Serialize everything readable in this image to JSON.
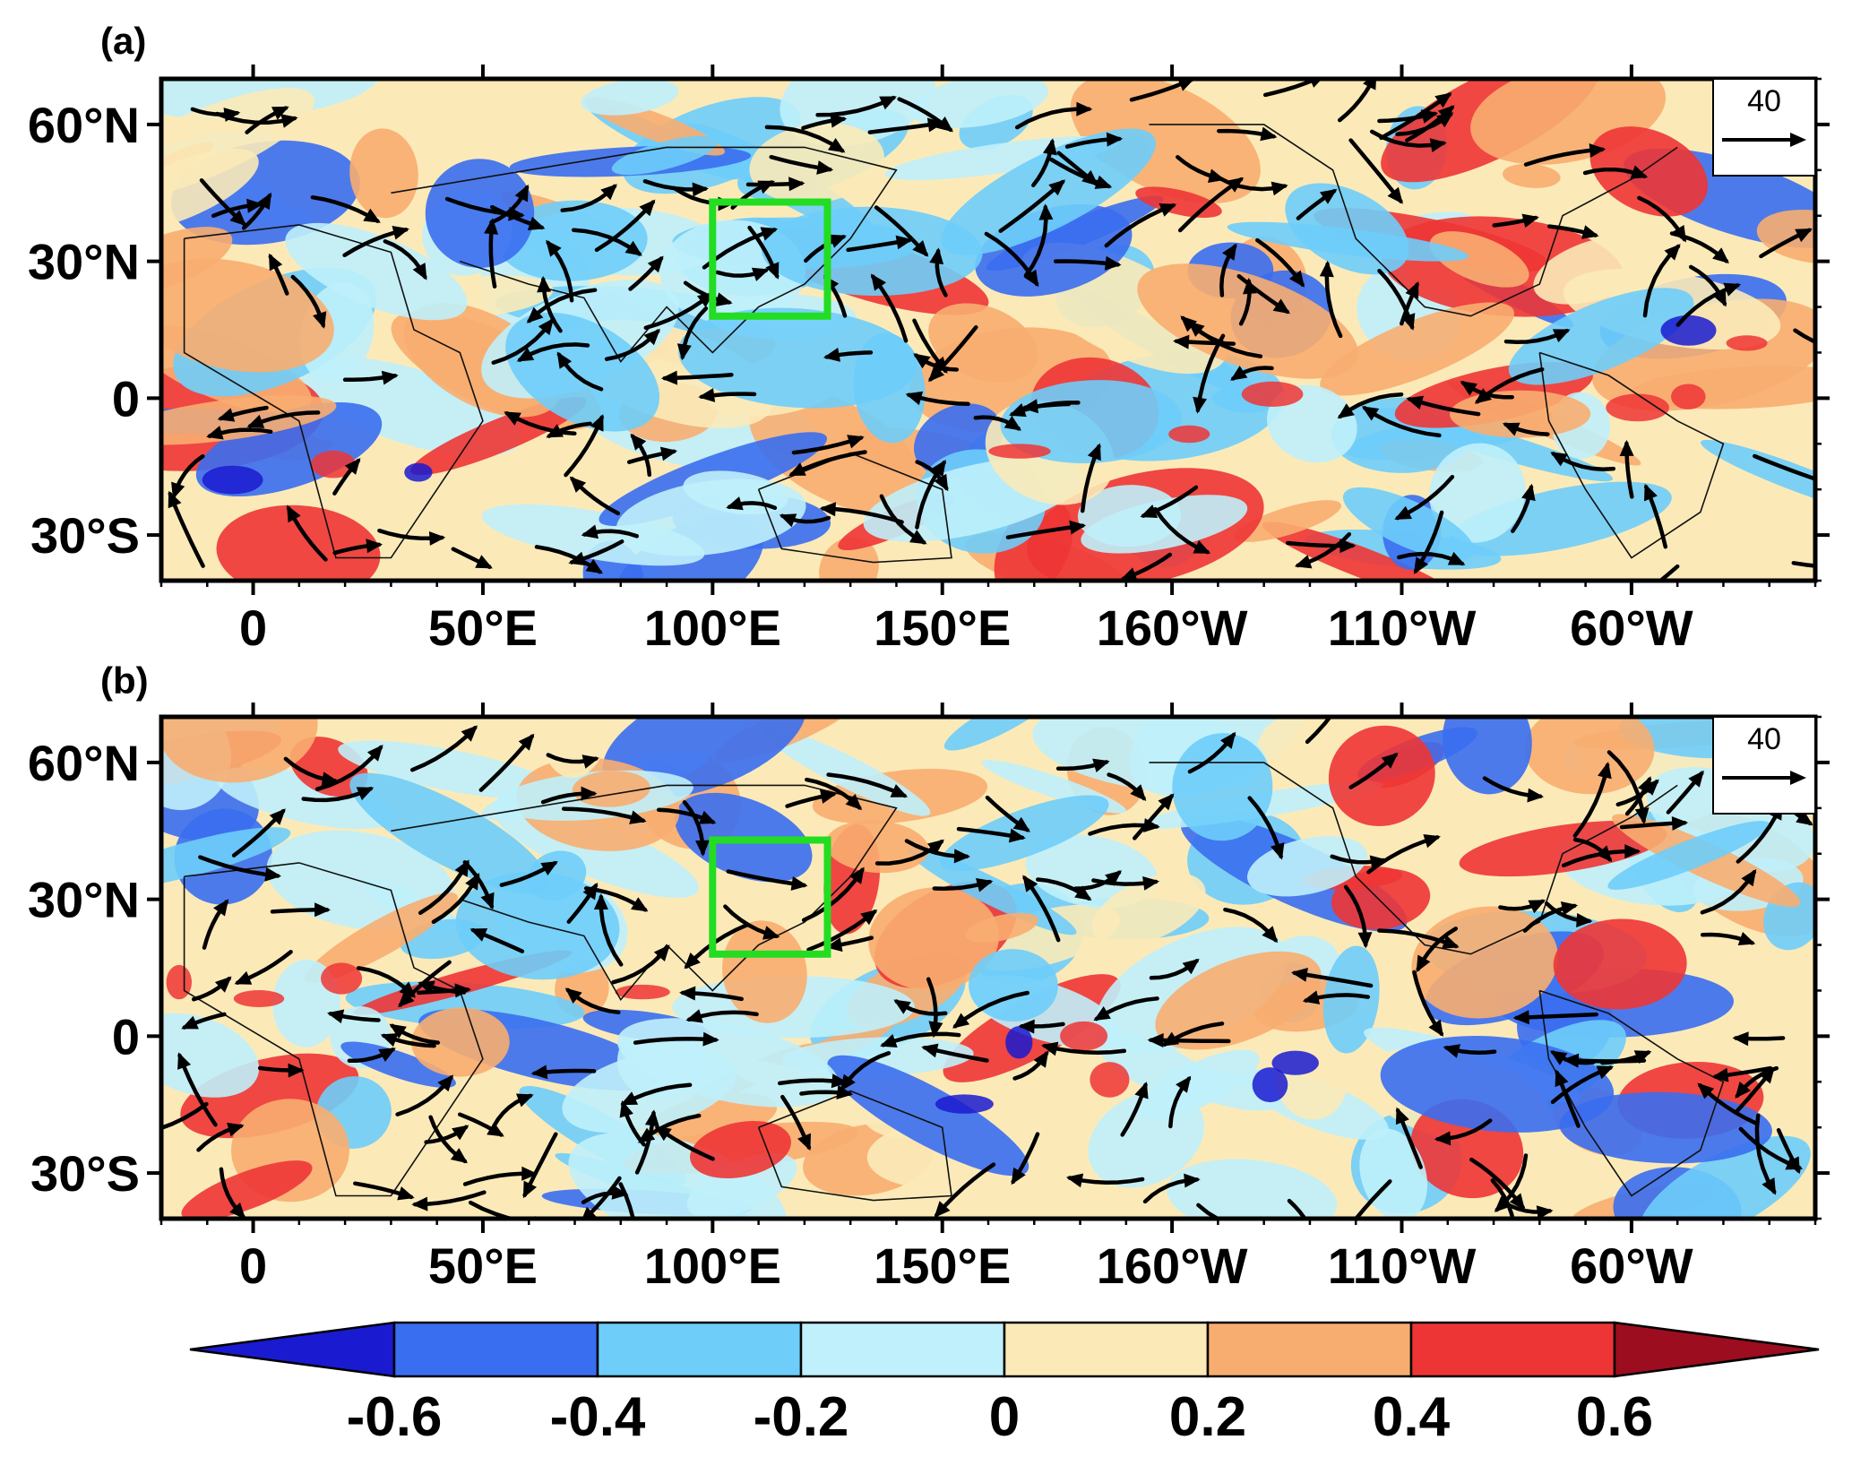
{
  "panels": [
    {
      "label": "(a)",
      "reference_vector": "40",
      "region_box": {
        "lon_min": 100,
        "lon_max": 125,
        "lat_min": 18,
        "lat_max": 43,
        "color": "#22dd22"
      }
    },
    {
      "label": "(b)",
      "reference_vector": "40",
      "region_box": {
        "lon_min": 100,
        "lon_max": 125,
        "lat_min": 18,
        "lat_max": 43,
        "color": "#22dd22"
      }
    }
  ],
  "axes": {
    "lon_range": [
      -20,
      340
    ],
    "lat_range": [
      -40,
      70
    ],
    "lon_ticks": [
      {
        "lon": 0,
        "label": "0"
      },
      {
        "lon": 50,
        "label": "50°E"
      },
      {
        "lon": 100,
        "label": "100°E"
      },
      {
        "lon": 150,
        "label": "150°E"
      },
      {
        "lon": 200,
        "label": "160°W"
      },
      {
        "lon": 250,
        "label": "110°W"
      },
      {
        "lon": 300,
        "label": "60°W"
      }
    ],
    "lat_ticks": [
      {
        "lat": 60,
        "label": "60°N"
      },
      {
        "lat": 30,
        "label": "30°N"
      },
      {
        "lat": 0,
        "label": "0"
      },
      {
        "lat": -30,
        "label": "30°S"
      }
    ]
  },
  "colorbar": {
    "labels": [
      "-0.6",
      "-0.4",
      "-0.2",
      "0",
      "0.2",
      "0.4",
      "0.6"
    ],
    "colors": [
      "#1a1ad0",
      "#3a6ef0",
      "#6ecdf9",
      "#bff0fb",
      "#fbeab8",
      "#f8ad70",
      "#ee3535",
      "#9c0d1f"
    ]
  },
  "background_colors": {
    "neutral_warm": "#fbeab8",
    "neutral_cool": "#bff0fb"
  }
}
